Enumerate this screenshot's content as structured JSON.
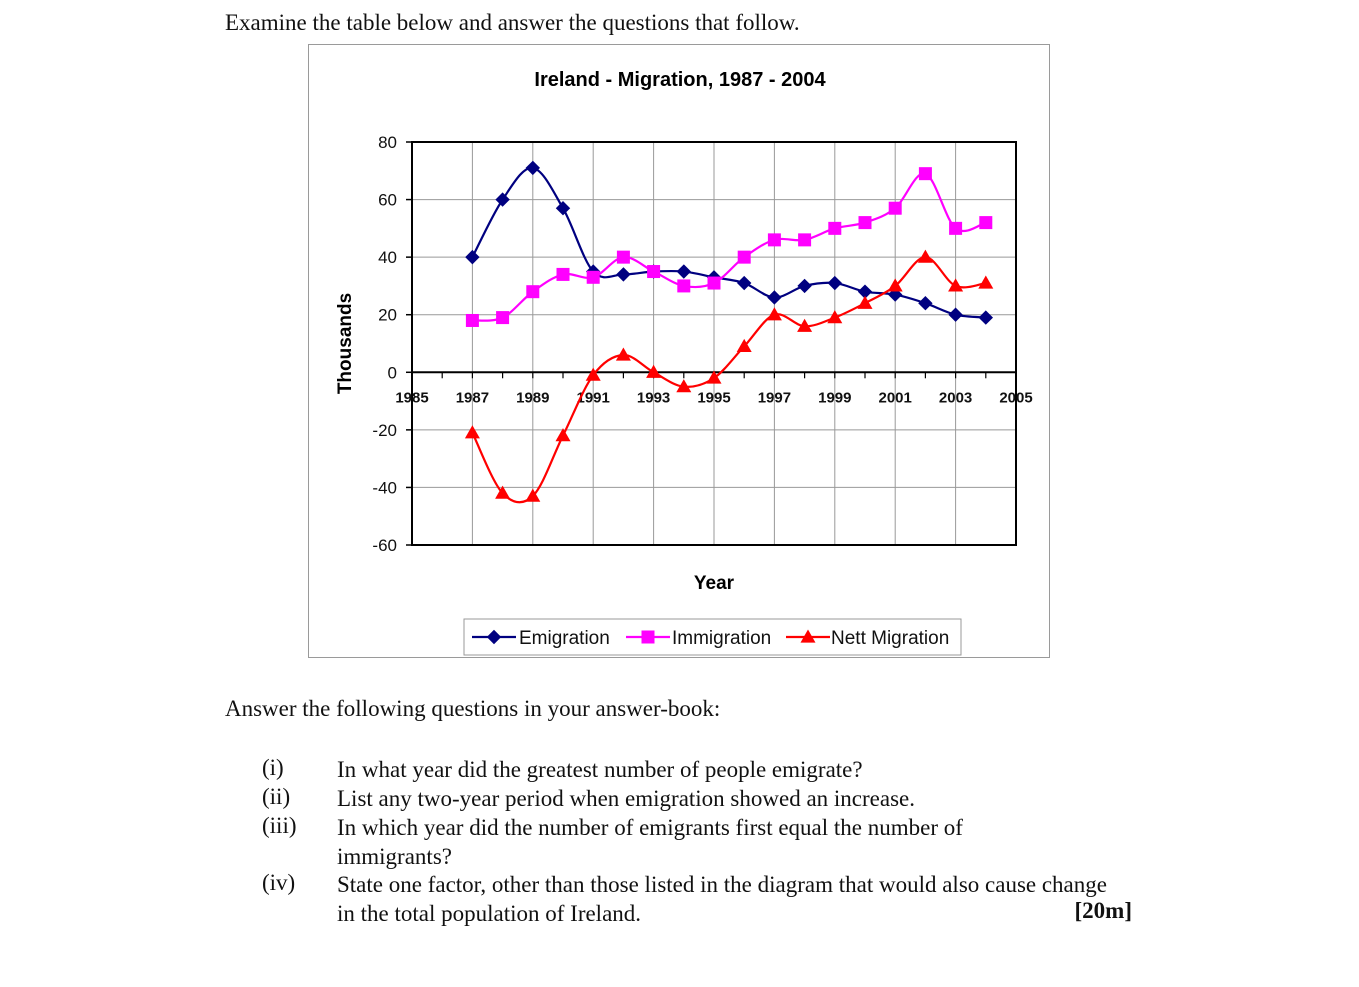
{
  "page": {
    "intro": "Examine the table below and answer the questions that follow.",
    "answer_heading": "Answer the following questions in your answer-book:",
    "questions": [
      {
        "num": "(i)",
        "text": "In what year did the greatest number of people emigrate?"
      },
      {
        "num": "(ii)",
        "text": "List any two-year period when emigration showed an increase."
      },
      {
        "num": "(iii)",
        "text": "In which year did the number of emigrants first equal the number of immigrants?"
      },
      {
        "num": "(iv)",
        "text": "State one factor, other than those listed in the diagram that would also cause change in the total population of Ireland."
      }
    ],
    "marks": "[20m]"
  },
  "chart_data": {
    "type": "line",
    "title": "Ireland - Migration, 1987 - 2004",
    "xlabel": "Year",
    "ylabel": "Thousands",
    "xlim": [
      1985,
      2005
    ],
    "ylim": [
      -60,
      80
    ],
    "x_ticks": [
      "1985",
      "1987",
      "1989",
      "1991",
      "1993",
      "1995",
      "1997",
      "1999",
      "2001",
      "2003",
      "2005"
    ],
    "y_ticks": [
      "80",
      "60",
      "40",
      "20",
      "0",
      "-20",
      "-40",
      "-60"
    ],
    "grid": true,
    "legend_position": "bottom",
    "x": [
      1987,
      1988,
      1989,
      1990,
      1991,
      1992,
      1993,
      1994,
      1995,
      1996,
      1997,
      1998,
      1999,
      2000,
      2001,
      2002,
      2003,
      2004
    ],
    "series": [
      {
        "name": "Emigration",
        "color": "#000080",
        "marker": "diamond",
        "values": [
          40,
          60,
          71,
          57,
          35,
          34,
          35,
          35,
          33,
          31,
          26,
          30,
          31,
          28,
          27,
          24,
          20,
          19
        ]
      },
      {
        "name": "Immigration",
        "color": "#ff00ff",
        "marker": "square",
        "values": [
          18,
          19,
          28,
          34,
          33,
          40,
          35,
          30,
          31,
          40,
          46,
          46,
          50,
          52,
          57,
          69,
          50,
          52
        ]
      },
      {
        "name": "Nett Migration",
        "color": "#ff0000",
        "marker": "triangle",
        "values": [
          -21,
          -42,
          -43,
          -22,
          -1,
          6,
          0,
          -5,
          -2,
          9,
          20,
          16,
          19,
          24,
          30,
          40,
          30,
          31
        ]
      }
    ]
  }
}
